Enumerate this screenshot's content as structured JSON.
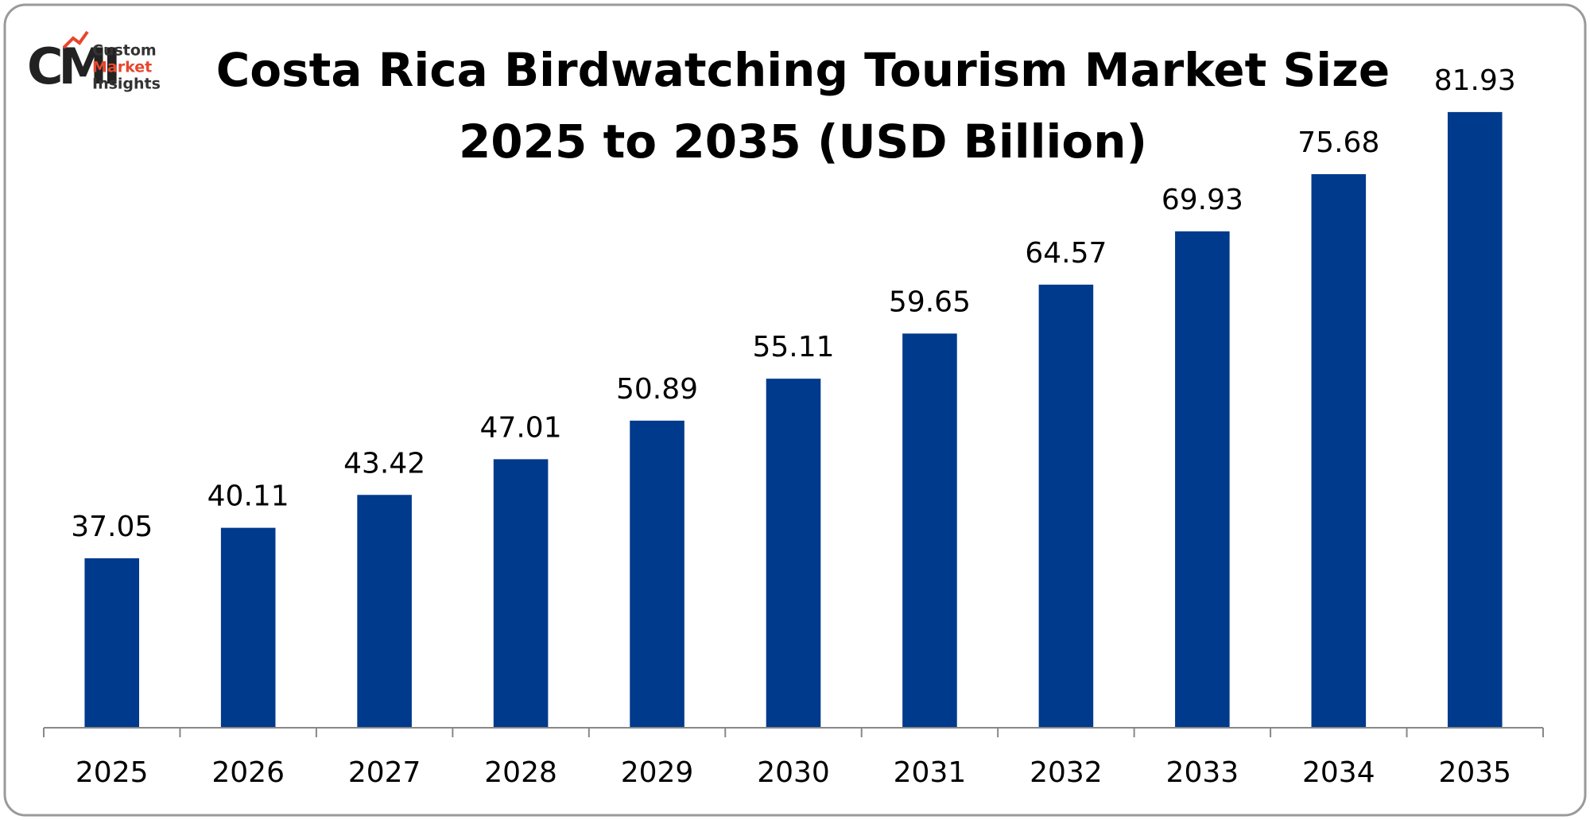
{
  "logo": {
    "mark": "CMI",
    "lines": [
      "Custom",
      "Market",
      "Insights"
    ]
  },
  "chart_data": {
    "type": "bar",
    "title": "Costa Rica Birdwatching Tourism Market Size",
    "subtitle": "2025 to 2035 (USD Billion)",
    "categories": [
      "2025",
      "2026",
      "2027",
      "2028",
      "2029",
      "2030",
      "2031",
      "2032",
      "2033",
      "2034",
      "2035"
    ],
    "values": [
      37.05,
      40.11,
      43.42,
      47.01,
      50.89,
      55.11,
      59.65,
      64.57,
      69.93,
      75.68,
      81.93
    ],
    "color": "#003a8c",
    "ylim": [
      20,
      90
    ]
  }
}
